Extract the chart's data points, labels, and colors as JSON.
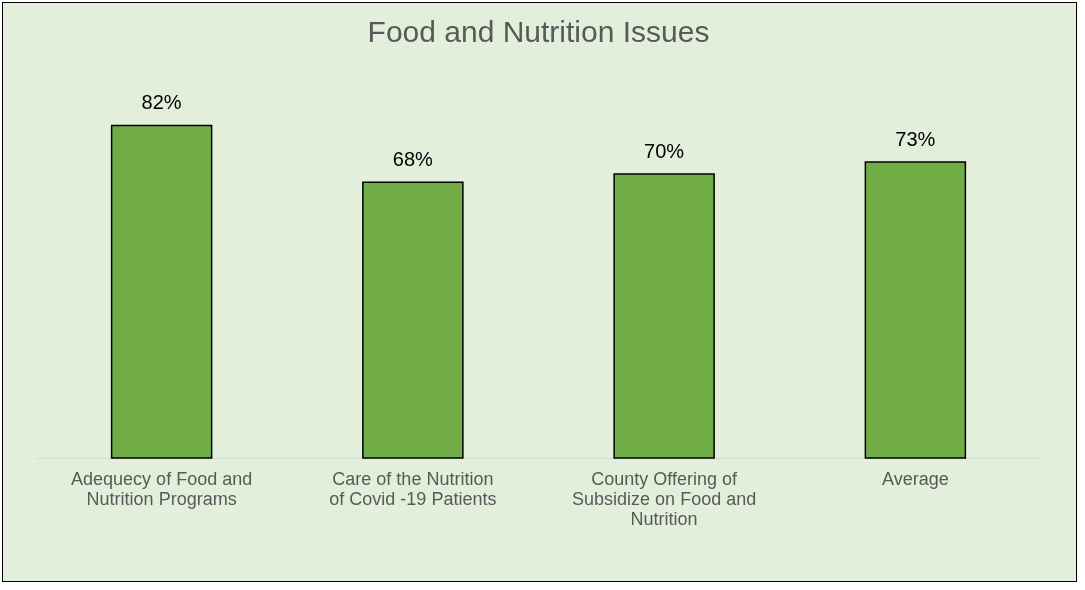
{
  "chart_data": {
    "type": "bar",
    "title": "Food and Nutrition Issues",
    "categories": [
      "Adequecy of Food and Nutrition Programs",
      "Care of the Nutrition of Covid -19 Patients",
      "County Offering of Subsidize on Food and Nutrition",
      "Average"
    ],
    "values": [
      82,
      68,
      70,
      73
    ],
    "value_labels": [
      "82%",
      "68%",
      "70%",
      "73%"
    ],
    "color": "#70ad47"
  }
}
